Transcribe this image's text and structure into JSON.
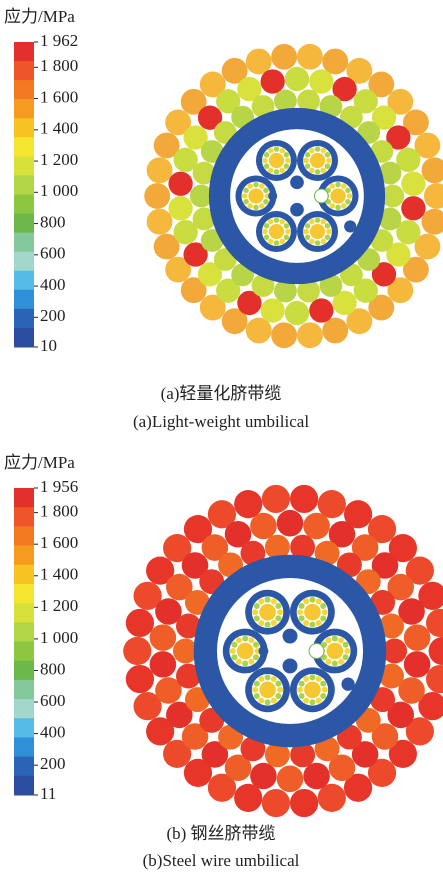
{
  "chart_data": [
    {
      "type": "contour",
      "title": "应力/MPa",
      "ylim": [
        10,
        1962
      ],
      "yticks": [
        {
          "value": 1962,
          "label": "1 962"
        },
        {
          "value": 1800,
          "label": "1 800"
        },
        {
          "value": 1600,
          "label": "1 600"
        },
        {
          "value": 1400,
          "label": "1 400"
        },
        {
          "value": 1200,
          "label": "1 200"
        },
        {
          "value": 1000,
          "label": "1 000"
        },
        800,
        600,
        400,
        200,
        10
      ],
      "colormap": [
        "#e4302b",
        "#ee5528",
        "#f37a21",
        "#f59c1f",
        "#f7c322",
        "#f4e62e",
        "#d7e13a",
        "#b2d548",
        "#8dc640",
        "#6cb84b",
        "#84c89c",
        "#a4d7cc",
        "#56bbe6",
        "#2f90d8",
        "#2b63b6",
        "#2b4ea1"
      ],
      "wire_colors": [
        [
          "#f5b83c",
          "#f3a83a"
        ],
        [
          "#e4302b",
          "#c9dc40",
          "#d9e23c"
        ],
        [
          "#c6da42",
          "#b7d546"
        ]
      ],
      "caption_cn": "(a)轻量化脐带缆",
      "caption_en": "(a)Light-weight umbilical"
    },
    {
      "type": "contour",
      "title": "应力/MPa",
      "ylim": [
        11,
        1956
      ],
      "yticks": [
        {
          "value": 1956,
          "label": "1 956"
        },
        {
          "value": 1800,
          "label": "1 800"
        },
        {
          "value": 1600,
          "label": "1 600"
        },
        {
          "value": 1400,
          "label": "1 400"
        },
        {
          "value": 1200,
          "label": "1 200"
        },
        {
          "value": 1000,
          "label": "1 000"
        },
        800,
        600,
        400,
        200,
        11
      ],
      "colormap": [
        "#e4302b",
        "#ee5528",
        "#f37a21",
        "#f59c1f",
        "#f7c322",
        "#f4e62e",
        "#d7e13a",
        "#b2d548",
        "#8dc640",
        "#6cb84b",
        "#84c89c",
        "#a4d7cc",
        "#56bbe6",
        "#2f90d8",
        "#2b63b6",
        "#2b4ea1"
      ],
      "wire_colors": [
        [
          "#e8352a",
          "#ec4a2a"
        ],
        [
          "#e4302b",
          "#ef5e28"
        ],
        [
          "#e83a2a",
          "#f06a26"
        ]
      ],
      "caption_cn": "(b) 钢丝脐带缆",
      "caption_en": "(b)Steel wire umbilical"
    }
  ]
}
